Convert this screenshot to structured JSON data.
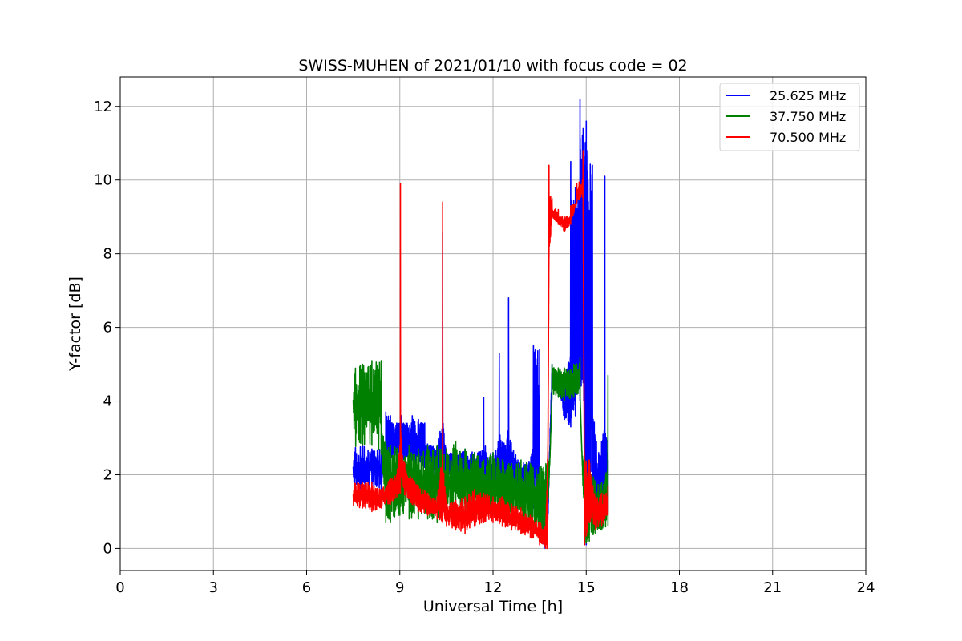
{
  "chart_data": {
    "type": "line",
    "title": "SWISS-MUHEN of 2021/01/10 with focus code = 02",
    "xlabel": "Universal Time [h]",
    "ylabel": "Y-factor [dB]",
    "xlim": [
      0,
      24
    ],
    "ylim": [
      -0.6,
      12.8
    ],
    "xticks": [
      0,
      3,
      6,
      9,
      12,
      15,
      18,
      21,
      24
    ],
    "yticks": [
      0,
      2,
      4,
      6,
      8,
      10,
      12
    ],
    "grid": true,
    "legend_position": "top-right",
    "series": [
      {
        "name": "25.625 MHz",
        "color": "#0000ff",
        "x": [
          7.5,
          7.8,
          8.1,
          8.4,
          8.55,
          8.7,
          8.9,
          9.05,
          9.2,
          9.4,
          9.6,
          9.8,
          10.0,
          10.2,
          10.38,
          10.5,
          10.8,
          11.1,
          11.4,
          11.7,
          12.0,
          12.2,
          12.4,
          12.5,
          12.8,
          13.1,
          13.3,
          13.5,
          13.65,
          13.75,
          13.9,
          14.1,
          14.3,
          14.5,
          14.65,
          14.8,
          14.9,
          15.0,
          15.05,
          15.2,
          15.4,
          15.6,
          15.7
        ],
        "low": [
          1.5,
          1.6,
          1.7,
          1.6,
          2.4,
          2.4,
          2.5,
          2.3,
          2.5,
          2.4,
          2.3,
          2.2,
          2.1,
          1.9,
          1.8,
          2.0,
          1.8,
          1.7,
          1.7,
          1.6,
          1.6,
          1.6,
          1.5,
          1.5,
          1.4,
          1.3,
          1.1,
          0.6,
          0.0,
          0.3,
          4.4,
          4.2,
          3.5,
          3.3,
          3.6,
          4.0,
          4.5,
          0.1,
          0.3,
          1.0,
          0.9,
          1.0,
          1.0
        ],
        "high": [
          2.8,
          2.8,
          2.7,
          2.7,
          3.7,
          3.6,
          3.4,
          3.6,
          3.4,
          3.6,
          3.5,
          3.4,
          2.8,
          2.8,
          8.6,
          2.6,
          2.6,
          2.7,
          2.6,
          4.1,
          2.6,
          5.3,
          2.8,
          6.8,
          2.4,
          2.3,
          5.5,
          5.4,
          0.8,
          0.9,
          5.0,
          4.7,
          4.6,
          10.5,
          9.8,
          12.2,
          11.4,
          11.6,
          10.8,
          10.4,
          2.6,
          10.1,
          2.4
        ]
      },
      {
        "name": "37.750 MHz",
        "color": "#008000",
        "x": [
          7.5,
          7.8,
          8.1,
          8.4,
          8.55,
          8.7,
          9.0,
          9.3,
          9.6,
          9.9,
          10.2,
          10.5,
          10.8,
          11.1,
          11.4,
          11.7,
          12.0,
          12.3,
          12.6,
          12.9,
          13.2,
          13.5,
          13.7,
          13.75,
          13.9,
          14.1,
          14.3,
          14.6,
          14.8,
          14.95,
          15.1,
          15.3,
          15.5,
          15.7
        ],
        "low": [
          2.6,
          2.8,
          2.8,
          2.6,
          0.7,
          0.7,
          0.9,
          0.8,
          0.8,
          0.8,
          0.7,
          0.9,
          0.9,
          0.8,
          0.9,
          0.9,
          0.9,
          0.8,
          0.8,
          0.7,
          0.6,
          0.4,
          0.3,
          0.3,
          4.2,
          4.1,
          4.0,
          4.1,
          4.2,
          0.1,
          0.2,
          0.4,
          0.5,
          0.6
        ],
        "high": [
          5.2,
          5.0,
          5.1,
          5.1,
          2.9,
          2.8,
          2.8,
          2.8,
          2.7,
          2.8,
          2.8,
          2.7,
          2.9,
          2.7,
          2.6,
          2.4,
          2.6,
          2.4,
          2.3,
          2.4,
          2.3,
          2.2,
          2.3,
          2.3,
          5.0,
          4.9,
          4.9,
          5.0,
          5.2,
          2.4,
          2.2,
          1.8,
          1.8,
          4.7
        ]
      },
      {
        "name": "70.500 MHz",
        "color": "#ff0000",
        "x": [
          7.5,
          7.8,
          8.1,
          8.4,
          8.7,
          8.9,
          9.02,
          9.2,
          9.4,
          9.6,
          9.9,
          10.2,
          10.38,
          10.5,
          10.8,
          11.1,
          11.4,
          11.7,
          12.0,
          12.3,
          12.6,
          12.9,
          13.2,
          13.5,
          13.7,
          13.75,
          13.8,
          13.9,
          14.1,
          14.3,
          14.5,
          14.7,
          14.9,
          14.95,
          15.1,
          15.3,
          15.5,
          15.7
        ],
        "low": [
          1.1,
          1.1,
          1.0,
          1.1,
          1.2,
          1.4,
          1.5,
          1.4,
          1.2,
          1.0,
          0.9,
          0.8,
          0.7,
          0.6,
          0.5,
          0.4,
          0.6,
          0.7,
          0.7,
          0.6,
          0.5,
          0.4,
          0.3,
          0.1,
          0.0,
          0.0,
          7.9,
          9.0,
          8.8,
          8.6,
          8.8,
          9.4,
          9.5,
          0.1,
          0.7,
          0.5,
          0.6,
          0.9
        ],
        "high": [
          1.8,
          1.8,
          1.8,
          1.6,
          1.9,
          2.0,
          9.9,
          2.1,
          1.9,
          1.7,
          1.5,
          1.4,
          9.4,
          1.3,
          1.3,
          1.4,
          1.6,
          1.5,
          1.4,
          1.4,
          1.2,
          1.1,
          0.9,
          0.7,
          0.6,
          2.3,
          10.4,
          9.5,
          9.2,
          9.0,
          9.3,
          9.9,
          10.8,
          2.4,
          2.4,
          1.4,
          1.5,
          1.7
        ]
      }
    ]
  }
}
